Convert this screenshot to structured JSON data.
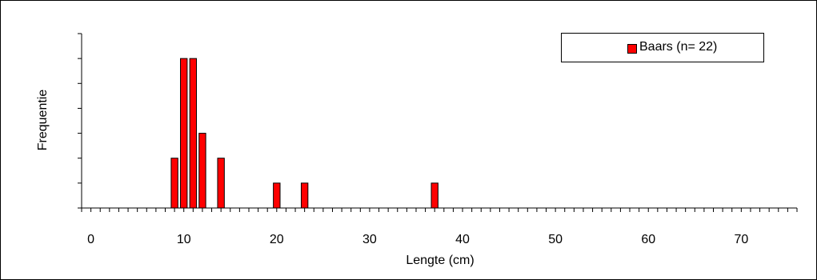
{
  "chart_data": {
    "type": "bar",
    "xlabel": "Lengte (cm)",
    "ylabel": "Frequentie",
    "xlim": [
      -1,
      76
    ],
    "ylim": [
      0,
      7
    ],
    "x_ticks": [
      0,
      10,
      20,
      30,
      40,
      50,
      60,
      70
    ],
    "grid": false,
    "legend_position": "top-right",
    "series": [
      {
        "name": "Baars (n= 22)",
        "color": "#ff0000",
        "x": [
          9,
          10,
          11,
          12,
          14,
          20,
          23,
          37
        ],
        "values": [
          2,
          6,
          6,
          3,
          2,
          1,
          1,
          1
        ]
      }
    ]
  }
}
